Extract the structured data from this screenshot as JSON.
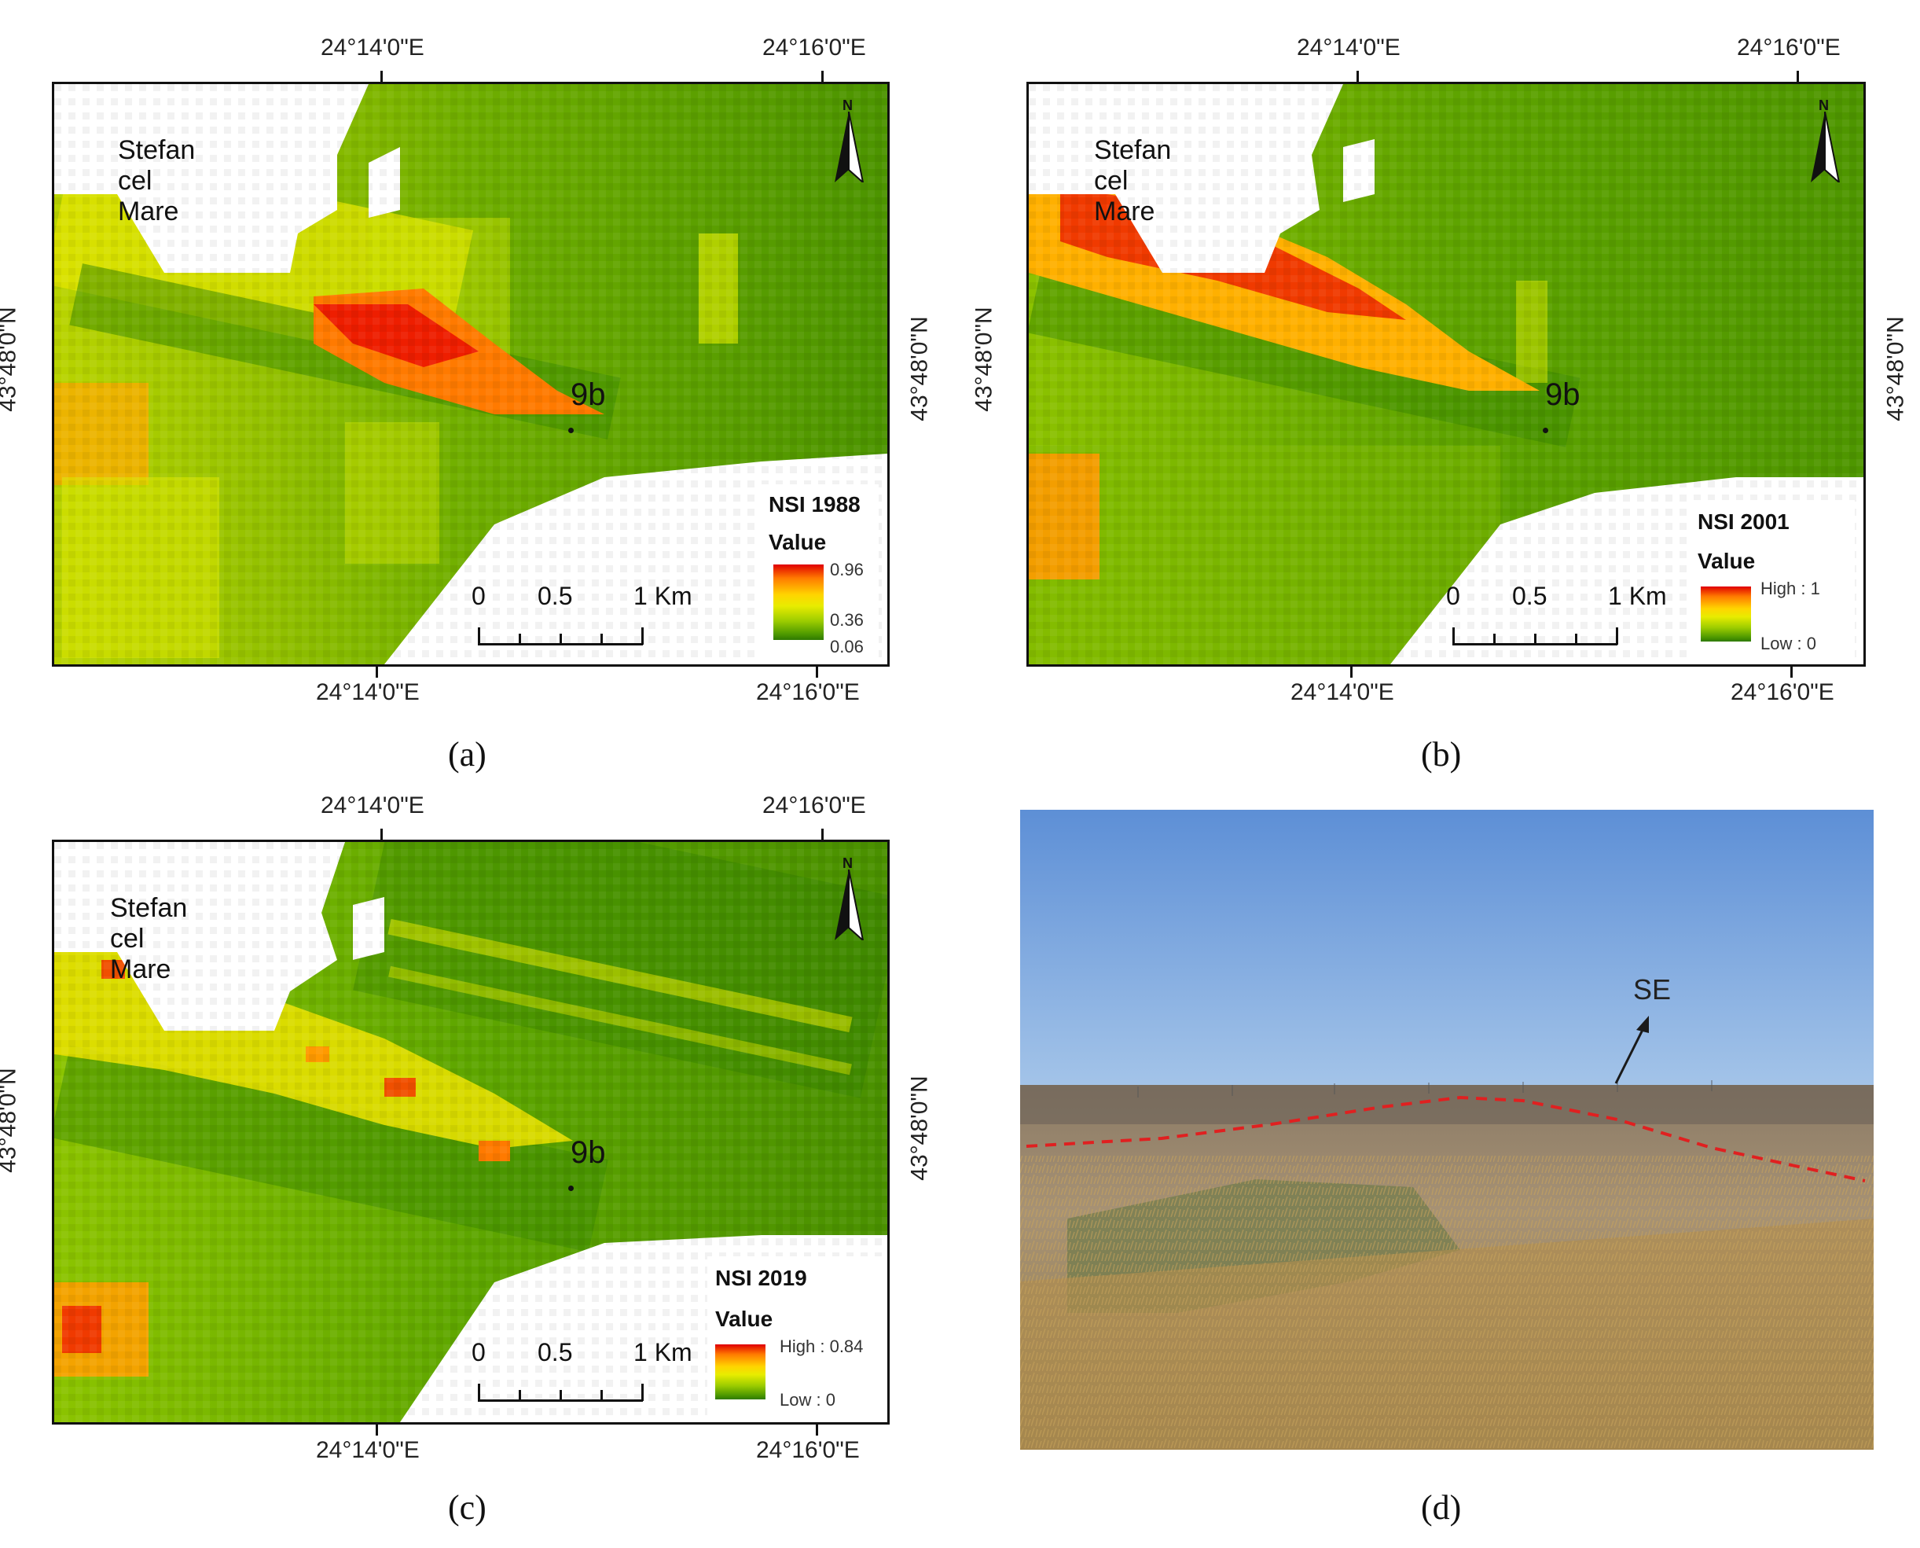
{
  "panels": [
    {
      "caption": "(a)",
      "town": "Stefan cel Mare",
      "point_label": "9b",
      "legend_title": "NSI 1988",
      "legend_value": "Value",
      "legend_labels": [
        "0.96",
        "0.36",
        "0.06"
      ],
      "top_lon": [
        "24°14'0\"E",
        "24°16'0\"E"
      ],
      "bottom_lon": [
        "24°14'0\"E",
        "24°16'0\"E"
      ],
      "lat": "43°48'0\"N",
      "scale": [
        "0",
        "0.5",
        "1 Km"
      ],
      "north": "N"
    },
    {
      "caption": "(b)",
      "town": "Stefan cel Mare",
      "point_label": "9b",
      "legend_title": "NSI 2001",
      "legend_value": "Value",
      "legend_labels": [
        "High : 1",
        "Low : 0"
      ],
      "top_lon": [
        "24°14'0\"E",
        "24°16'0\"E"
      ],
      "bottom_lon": [
        "24°14'0\"E",
        "24°16'0\"E"
      ],
      "lat": "43°48'0\"N",
      "scale": [
        "0",
        "0.5",
        "1 Km"
      ],
      "north": "N"
    },
    {
      "caption": "(c)",
      "town": "Stefan cel Mare",
      "point_label": "9b",
      "legend_title": "NSI 2019",
      "legend_value": "Value",
      "legend_labels": [
        "High : 0.84",
        "Low : 0"
      ],
      "top_lon": [
        "24°14'0\"E",
        "24°16'0\"E"
      ],
      "bottom_lon": [
        "24°14'0\"E",
        "24°16'0\"E"
      ],
      "lat": "43°48'0\"N",
      "scale": [
        "0",
        "0.5",
        "1 Km"
      ],
      "north": "N"
    },
    {
      "caption": "(d)",
      "direction_label": "SE"
    }
  ],
  "colors": {
    "high": "#e00000",
    "mid": "#ffd400",
    "low": "#2e7a00",
    "boundary_line": "#e02020"
  }
}
